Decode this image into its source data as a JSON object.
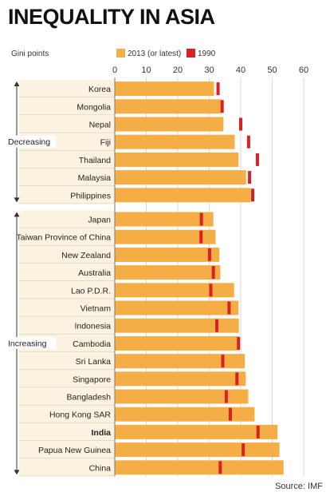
{
  "chart_data": {
    "type": "bar",
    "title": "INEQUALITY IN ASIA",
    "unit_label": "Gini points",
    "source": "Source: IMF",
    "xlim": [
      0,
      60
    ],
    "xticks": [
      0,
      10,
      20,
      30,
      40,
      50,
      60
    ],
    "legend": {
      "placement": "top"
    },
    "colors": {
      "bar": "#F4AE45",
      "marker": "#DA2027",
      "row_alt": "#FBF3E0"
    },
    "series": [
      {
        "name": "2013 (or latest)",
        "kind": "bar",
        "values": [
          31.5,
          33.8,
          34.5,
          38.1,
          39.3,
          41.7,
          43.2,
          31.3,
          32.0,
          33.2,
          33.5,
          37.9,
          39.3,
          39.4,
          39.5,
          41.3,
          41.6,
          42.4,
          44.4,
          51.7,
          52.3,
          53.6
        ]
      },
      {
        "name": "1990",
        "kind": "marker",
        "values": [
          32.8,
          34.1,
          40.0,
          42.5,
          45.3,
          42.8,
          43.8,
          27.5,
          27.4,
          30.1,
          31.3,
          30.5,
          36.3,
          32.4,
          39.3,
          34.3,
          38.8,
          35.4,
          36.7,
          45.5,
          40.8,
          33.5
        ]
      }
    ],
    "categories": [
      "Korea",
      "Mongolia",
      "Nepal",
      "Fiji",
      "Thailand",
      "Malaysia",
      "Philippines",
      "Japan",
      "Taiwan Province of China",
      "New Zealand",
      "Australia",
      "Lao P.D.R.",
      "Vietnam",
      "Indonesia",
      "Cambodia",
      "Sri Lanka",
      "Singapore",
      "Bangladesh",
      "Hong Kong SAR",
      "India",
      "Papua New Guinea",
      "China"
    ],
    "highlight": [
      "India"
    ],
    "groups": [
      {
        "label": "Decreasing",
        "count": 7
      },
      {
        "label": "Increasing",
        "count": 15
      }
    ]
  }
}
